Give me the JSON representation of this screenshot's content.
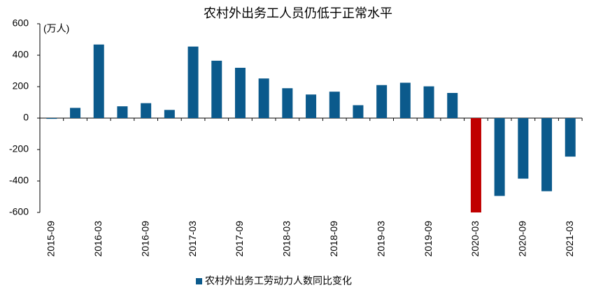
{
  "chart_data": {
    "type": "bar",
    "title": "农村外出务工人员仍低于正常水平",
    "y_unit": "(万人)",
    "categories": [
      "2015-09",
      null,
      "2016-03",
      null,
      "2016-09",
      null,
      "2017-03",
      null,
      "2017-09",
      null,
      "2018-03",
      null,
      "2018-09",
      null,
      "2019-03",
      null,
      "2019-09",
      null,
      "2020-03",
      null,
      "2020-09",
      null,
      "2021-03"
    ],
    "series": [
      {
        "name": "农村外出务工劳动力人数同比变化",
        "color": "#0b5a8c",
        "values": [
          -5,
          65,
          468,
          75,
          95,
          52,
          455,
          365,
          320,
          252,
          190,
          150,
          168,
          82,
          210,
          225,
          202,
          160,
          -600,
          -495,
          -385,
          -465,
          -245
        ]
      }
    ],
    "bar_colors": [
      "#0b5a8c",
      "#0b5a8c",
      "#0b5a8c",
      "#0b5a8c",
      "#0b5a8c",
      "#0b5a8c",
      "#0b5a8c",
      "#0b5a8c",
      "#0b5a8c",
      "#0b5a8c",
      "#0b5a8c",
      "#0b5a8c",
      "#0b5a8c",
      "#0b5a8c",
      "#0b5a8c",
      "#0b5a8c",
      "#0b5a8c",
      "#0b5a8c",
      "#c00000",
      "#0b5a8c",
      "#0b5a8c",
      "#0b5a8c",
      "#0b5a8c"
    ],
    "ylim": [
      -600,
      600
    ],
    "yticks": [
      -600,
      -400,
      -200,
      0,
      200,
      400,
      600
    ],
    "grid": false,
    "legend": "bottom"
  }
}
